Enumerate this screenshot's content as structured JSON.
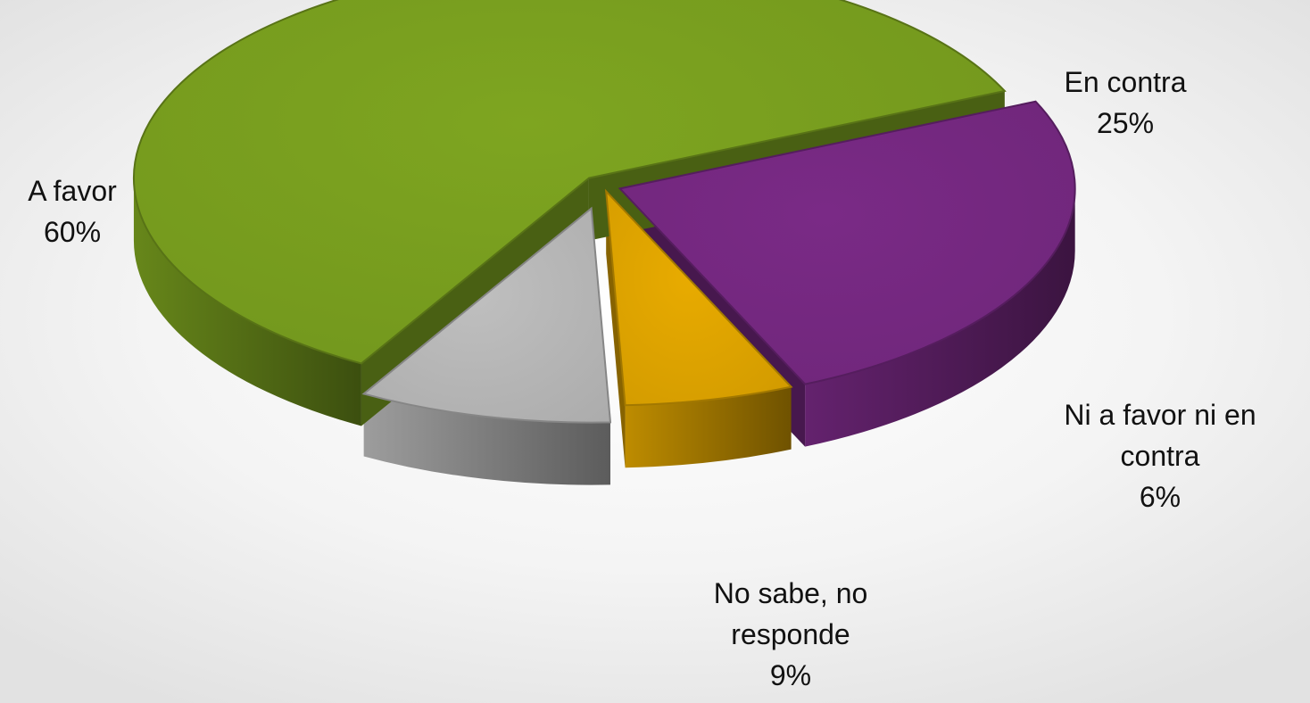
{
  "chart_data": {
    "type": "pie",
    "style": "3d-exploded",
    "title": "",
    "slices": [
      {
        "label_lines": [
          "En contra",
          "25%"
        ],
        "value": 25,
        "color": "#7a2a86"
      },
      {
        "label_lines": [
          "Ni a favor ni en",
          "contra",
          "6%"
        ],
        "value": 6,
        "color": "#e8ab00"
      },
      {
        "label_lines": [
          "No sabe, no",
          "responde",
          "9%"
        ],
        "value": 9,
        "color": "#bfbfbf"
      },
      {
        "label_lines": [
          "A favor",
          "60%"
        ],
        "value": 60,
        "color": "#7ea520"
      }
    ]
  }
}
